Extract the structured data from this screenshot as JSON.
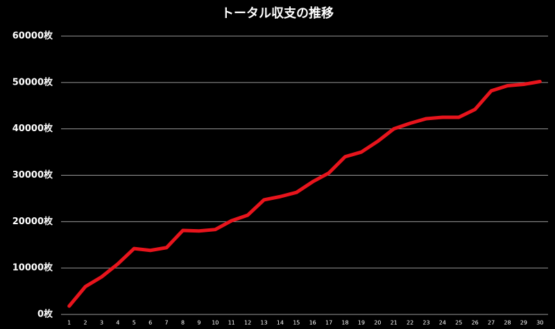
{
  "chart_data": {
    "type": "line",
    "title": "トータル収支の推移",
    "categories": [
      "1",
      "2",
      "3",
      "4",
      "5",
      "6",
      "7",
      "8",
      "9",
      "10",
      "11",
      "12",
      "13",
      "14",
      "15",
      "16",
      "17",
      "18",
      "19",
      "20",
      "21",
      "22",
      "23",
      "24",
      "25",
      "26",
      "27",
      "28",
      "29",
      "30"
    ],
    "series": [
      {
        "name": "トータル収支",
        "color": "#e8141c",
        "values": [
          1800,
          6000,
          8100,
          10900,
          14200,
          13800,
          14400,
          18100,
          18000,
          18300,
          20200,
          21400,
          24700,
          25400,
          26300,
          28600,
          30500,
          34000,
          35000,
          37300,
          40000,
          41200,
          42200,
          42500,
          42500,
          44200,
          48200,
          49300,
          49600,
          50200
        ]
      }
    ],
    "ylim": [
      0,
      60000
    ],
    "yticks": [
      {
        "value": 0,
        "label": "0枚"
      },
      {
        "value": 10000,
        "label": "10000枚"
      },
      {
        "value": 20000,
        "label": "20000枚"
      },
      {
        "value": 30000,
        "label": "30000枚"
      },
      {
        "value": 40000,
        "label": "40000枚"
      },
      {
        "value": 50000,
        "label": "50000枚"
      },
      {
        "value": 60000,
        "label": "60000枚"
      }
    ],
    "grid": true
  }
}
